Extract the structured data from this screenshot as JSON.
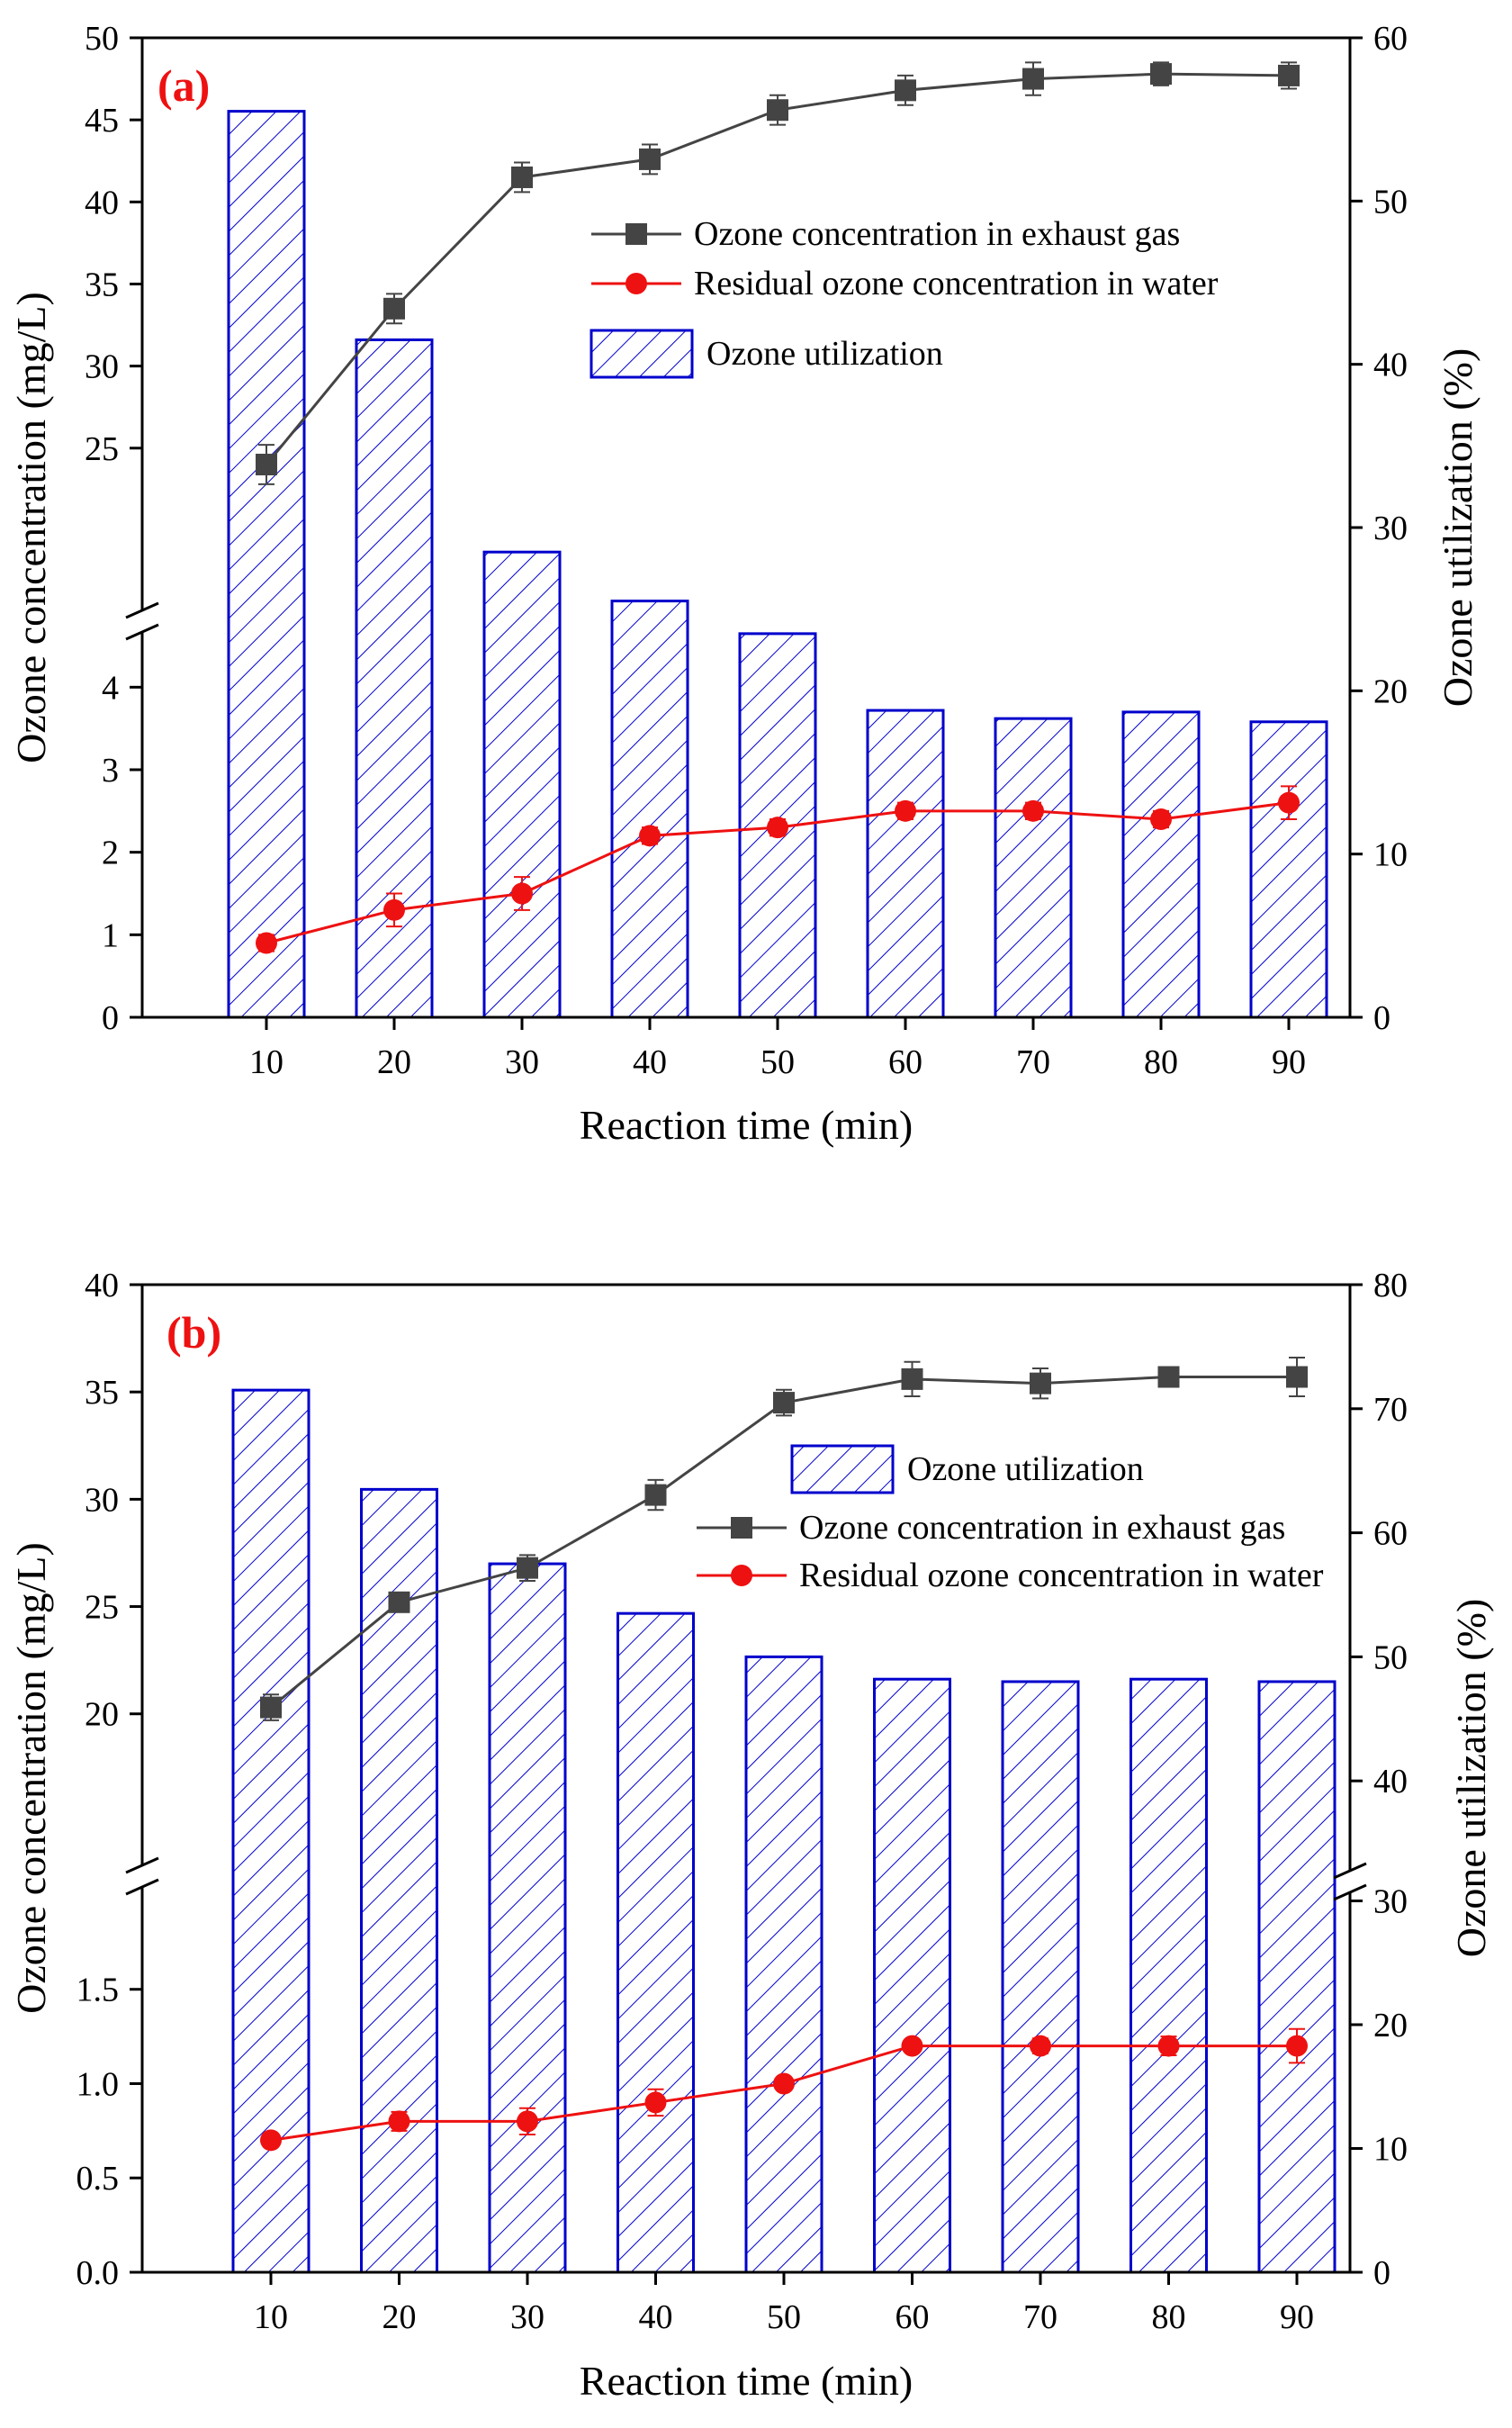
{
  "chart_data": [
    {
      "type": "bar",
      "panel_label": "(a)",
      "xlabel": "Reaction time (min)",
      "ylabel": "Ozone concentration  (mg/L)",
      "y2label": "Ozone utilization  (%)",
      "categories": [
        10,
        20,
        30,
        40,
        50,
        60,
        70,
        80,
        90
      ],
      "x_ticks": [
        "10",
        "20",
        "30",
        "40",
        "50",
        "60",
        "70",
        "80",
        "90"
      ],
      "y_axis_break": true,
      "y_lower_range": [
        0,
        4.8
      ],
      "y_upper_range": [
        20.6,
        50
      ],
      "y_lower_ticks": [
        "0",
        "1",
        "2",
        "3",
        "4"
      ],
      "y_upper_ticks": [
        "25",
        "30",
        "35",
        "40",
        "45",
        "50"
      ],
      "y2_range": [
        0,
        60
      ],
      "y2_ticks": [
        "0",
        "10",
        "20",
        "30",
        "40",
        "50",
        "60"
      ],
      "bars": {
        "name": "Ozone utilization",
        "axis": "right",
        "values": [
          55.5,
          41.5,
          28.5,
          25.5,
          23.5,
          18.8,
          18.3,
          18.7,
          18.1
        ]
      },
      "series": [
        {
          "name": "Ozone concentration in exhaust gas",
          "axis": "left",
          "marker": "square",
          "values": [
            24.0,
            33.5,
            41.5,
            42.6,
            45.6,
            46.8,
            47.5,
            47.8,
            47.7
          ],
          "errors": [
            1.2,
            0.9,
            0.9,
            0.9,
            0.9,
            0.9,
            1.0,
            0.7,
            0.8
          ]
        },
        {
          "name": "Residual ozone concentration in water",
          "axis": "left",
          "marker": "circle",
          "values": [
            0.9,
            1.3,
            1.5,
            2.2,
            2.3,
            2.5,
            2.5,
            2.4,
            2.6
          ],
          "errors": [
            0.1,
            0.2,
            0.2,
            0.1,
            0.1,
            0.1,
            0.1,
            0.1,
            0.2
          ]
        }
      ],
      "legend_placement": "upper-right",
      "colors": {
        "bar": "#0000cc",
        "exhaust": "#444444",
        "residual": "#ee1111",
        "panel_label": "#ee1111"
      }
    },
    {
      "type": "bar",
      "panel_label": "(b)",
      "xlabel": "Reaction time (min)",
      "ylabel": "Ozone concentration  (mg/L)",
      "y2label": "Ozone utilization  (%)",
      "categories": [
        10,
        20,
        30,
        40,
        50,
        60,
        70,
        80,
        90
      ],
      "x_ticks": [
        "10",
        "20",
        "30",
        "40",
        "50",
        "60",
        "70",
        "80",
        "90"
      ],
      "y_axis_break": true,
      "y_lower_range": [
        0,
        2.1
      ],
      "y_upper_range": [
        15.5,
        40
      ],
      "y_lower_ticks": [
        "0.0",
        "0.5",
        "1.0",
        "1.5"
      ],
      "y_upper_ticks": [
        "20",
        "25",
        "30",
        "35",
        "40"
      ],
      "y2_axis_break": true,
      "y2_lower_range": [
        0,
        32
      ],
      "y2_upper_range": [
        30,
        80
      ],
      "y2_lower_ticks": [
        "0",
        "10",
        "20",
        "30"
      ],
      "y2_upper_ticks": [
        "40",
        "50",
        "60",
        "70",
        "80"
      ],
      "bars": {
        "name": "Ozone utilization",
        "axis": "right",
        "values": [
          71.5,
          63.5,
          57.5,
          53.5,
          50.0,
          48.2,
          48.0,
          48.2,
          48.0
        ]
      },
      "series": [
        {
          "name": "Ozone concentration in exhaust gas",
          "axis": "left",
          "marker": "square",
          "values": [
            20.3,
            25.2,
            26.8,
            30.2,
            34.5,
            35.6,
            35.4,
            35.7,
            35.7
          ],
          "errors": [
            0.6,
            0.4,
            0.6,
            0.7,
            0.6,
            0.8,
            0.7,
            0.3,
            0.9
          ]
        },
        {
          "name": "Residual ozone concentration in water",
          "axis": "left",
          "marker": "circle",
          "values": [
            0.7,
            0.8,
            0.8,
            0.9,
            1.0,
            1.2,
            1.2,
            1.2,
            1.2
          ],
          "errors": [
            0.03,
            0.05,
            0.07,
            0.07,
            0.03,
            0.03,
            0.04,
            0.05,
            0.09
          ]
        }
      ],
      "legend_placement": "upper-right",
      "colors": {
        "bar": "#0000cc",
        "exhaust": "#444444",
        "residual": "#ee1111",
        "panel_label": "#ee1111"
      }
    }
  ]
}
